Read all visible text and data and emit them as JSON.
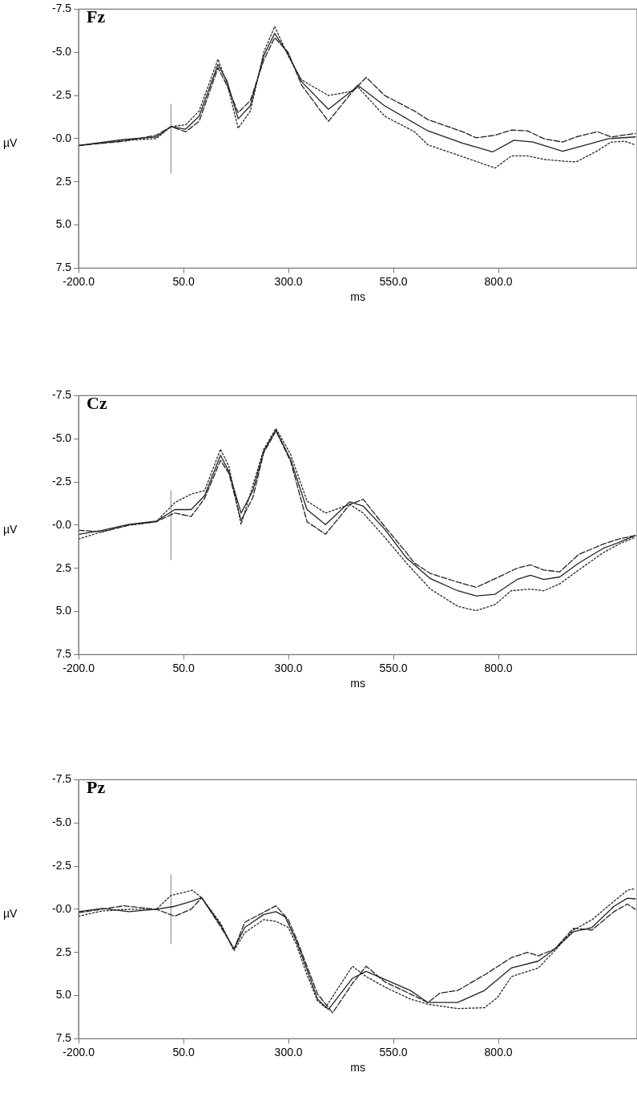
{
  "chart_data": [
    {
      "type": "line",
      "title": "Fz",
      "xlabel": "ms",
      "ylabel": "µV",
      "xlim": [
        -200,
        1130
      ],
      "ylim": [
        7.5,
        -7.5
      ],
      "marker": "none",
      "xticks": [
        {
          "value": -200,
          "label": "-200.0"
        },
        {
          "value": 50,
          "label": "50.0"
        },
        {
          "value": 300,
          "label": "300.0"
        },
        {
          "value": 550,
          "label": "550.0"
        },
        {
          "value": 800,
          "label": "800.0"
        }
      ],
      "yticks": [
        {
          "value": -7.5,
          "label": "-7.5"
        },
        {
          "value": -5,
          "label": "-5.0"
        },
        {
          "value": -2.5,
          "label": "-2.5"
        },
        {
          "value": 0,
          "label": "-0.0"
        },
        {
          "value": 2.5,
          "label": "2.5"
        },
        {
          "value": 5,
          "label": "5.0"
        },
        {
          "value": 7.5,
          "label": "7.5"
        }
      ],
      "series": [
        {
          "color": "#222222",
          "line_style": "solid",
          "x": [
            -200,
            -92,
            -15,
            20,
            55,
            87,
            132,
            154,
            180,
            209,
            241,
            267,
            299,
            331,
            395,
            453,
            465,
            529,
            632,
            715,
            786,
            837,
            882,
            953,
            1023,
            1062,
            1126
          ],
          "values": [
            0.4,
            0.05,
            -0.1,
            -0.7,
            -0.55,
            -1.3,
            -4.3,
            -3.3,
            -1.15,
            -1.9,
            -4.8,
            -6.1,
            -4.9,
            -3.3,
            -1.7,
            -2.8,
            -3.1,
            -1.9,
            -0.45,
            0.27,
            0.77,
            0.09,
            0.2,
            0.73,
            0.27,
            0,
            -0.1
          ]
        },
        {
          "color": "#222222",
          "line_style": "dashed",
          "x": [
            -200,
            -92,
            -15,
            20,
            55,
            87,
            132,
            154,
            180,
            209,
            241,
            267,
            299,
            331,
            395,
            453,
            485,
            529,
            600,
            632,
            715,
            747,
            792,
            831,
            869,
            908,
            953,
            985,
            1036,
            1068,
            1126
          ],
          "values": [
            0.4,
            0.15,
            -0.2,
            -0.7,
            -0.4,
            -1.0,
            -4.1,
            -3.05,
            -1.5,
            -2.2,
            -4.55,
            -5.85,
            -5.0,
            -3.1,
            -1.0,
            -2.75,
            -3.55,
            -2.5,
            -1.6,
            -1.1,
            -0.4,
            -0.05,
            -0.2,
            -0.5,
            -0.45,
            0,
            0.2,
            -0.1,
            -0.4,
            -0.1,
            -0.3
          ]
        },
        {
          "color": "#222222",
          "line_style": "dotted",
          "x": [
            -200,
            -92,
            -15,
            20,
            55,
            87,
            132,
            154,
            180,
            209,
            241,
            267,
            299,
            331,
            395,
            453,
            465,
            529,
            600,
            632,
            715,
            792,
            831,
            869,
            908,
            953,
            985,
            1036,
            1068,
            1100,
            1126
          ],
          "values": [
            0.4,
            0.1,
            0,
            -0.7,
            -0.8,
            -1.6,
            -4.6,
            -3.15,
            -0.6,
            -1.6,
            -5.0,
            -6.5,
            -4.8,
            -3.4,
            -2.5,
            -2.75,
            -3.0,
            -1.3,
            -0.4,
            0.36,
            1.05,
            1.7,
            1.0,
            1.0,
            1.2,
            1.3,
            1.35,
            0.7,
            0.2,
            0.15,
            0.36
          ]
        },
        {
          "color": "#999999",
          "line_style": "solid",
          "x": [
            20,
            20
          ],
          "values": [
            -2,
            2
          ]
        }
      ]
    },
    {
      "type": "line",
      "title": "Cz",
      "xlabel": "ms",
      "ylabel": "µV",
      "xlim": [
        -200,
        1130
      ],
      "ylim": [
        7.5,
        -7.5
      ],
      "marker": "none",
      "xticks": [
        {
          "value": -200,
          "label": "-200.0"
        },
        {
          "value": 50,
          "label": "50.0"
        },
        {
          "value": 300,
          "label": "300.0"
        },
        {
          "value": 550,
          "label": "550.0"
        },
        {
          "value": 800,
          "label": "800.0"
        }
      ],
      "yticks": [
        {
          "value": -7.5,
          "label": "-7.5"
        },
        {
          "value": -5,
          "label": "-5.0"
        },
        {
          "value": -2.5,
          "label": "-2.5"
        },
        {
          "value": 0,
          "label": "-0.0"
        },
        {
          "value": 2.5,
          "label": "2.5"
        },
        {
          "value": 5,
          "label": "5.0"
        },
        {
          "value": 7.5,
          "label": "7.5"
        }
      ],
      "series": [
        {
          "color": "#222222",
          "line_style": "solid",
          "x": [
            -200,
            -144,
            -80,
            -15,
            29,
            68,
            100,
            138,
            158,
            187,
            215,
            241,
            270,
            305,
            344,
            388,
            446,
            478,
            529,
            581,
            638,
            703,
            747,
            792,
            844,
            876,
            908,
            946,
            991,
            1049,
            1087,
            1126
          ],
          "values": [
            0.53,
            0.3,
            -0.05,
            -0.23,
            -0.9,
            -0.9,
            -1.7,
            -4.05,
            -3.1,
            -0.7,
            -2.0,
            -4.3,
            -5.5,
            -3.8,
            -0.9,
            -0.03,
            -1.35,
            -1.1,
            0.23,
            1.9,
            3.1,
            3.8,
            4.1,
            4.0,
            3.15,
            2.9,
            3.15,
            3.0,
            2.2,
            1.35,
            1.0,
            0.6
          ]
        },
        {
          "color": "#222222",
          "line_style": "dashed",
          "x": [
            -200,
            -144,
            -80,
            -15,
            29,
            68,
            100,
            138,
            158,
            187,
            215,
            241,
            270,
            305,
            344,
            388,
            446,
            478,
            529,
            581,
            600,
            638,
            703,
            747,
            792,
            844,
            876,
            908,
            946,
            991,
            1049,
            1087,
            1126
          ],
          "values": [
            0.3,
            0.38,
            0,
            -0.2,
            -0.7,
            -0.5,
            -1.55,
            -3.75,
            -3.0,
            -0.27,
            -1.6,
            -4.2,
            -5.45,
            -3.7,
            -0.2,
            0.53,
            -1.2,
            -1.5,
            0.08,
            1.6,
            2.2,
            2.8,
            3.3,
            3.6,
            3.1,
            2.5,
            2.3,
            2.6,
            2.7,
            1.7,
            1.1,
            0.8,
            0.6
          ]
        },
        {
          "color": "#222222",
          "line_style": "dotted",
          "x": [
            -200,
            -144,
            -80,
            -15,
            29,
            68,
            100,
            138,
            158,
            187,
            215,
            241,
            270,
            305,
            344,
            388,
            446,
            478,
            529,
            581,
            638,
            703,
            747,
            792,
            830,
            876,
            908,
            946,
            991,
            1049,
            1087,
            1126
          ],
          "values": [
            0.8,
            0.38,
            0,
            -0.2,
            -1.3,
            -1.8,
            -2.0,
            -4.4,
            -3.4,
            -0.05,
            -2.3,
            -4.4,
            -5.6,
            -4.1,
            -1.4,
            -0.7,
            -1.2,
            -0.7,
            0.7,
            2.2,
            3.7,
            4.7,
            4.95,
            4.6,
            3.8,
            3.7,
            3.8,
            3.4,
            2.6,
            1.6,
            1.1,
            0.7
          ]
        },
        {
          "color": "#999999",
          "line_style": "solid",
          "x": [
            20,
            20
          ],
          "values": [
            -2,
            2
          ]
        }
      ]
    },
    {
      "type": "line",
      "title": "Pz",
      "xlabel": "ms",
      "ylabel": "µV",
      "xlim": [
        -200,
        1130
      ],
      "ylim": [
        7.5,
        -7.5
      ],
      "marker": "none",
      "xticks": [
        {
          "value": -200,
          "label": "-200.0"
        },
        {
          "value": 50,
          "label": "50.0"
        },
        {
          "value": 300,
          "label": "300.0"
        },
        {
          "value": 550,
          "label": "550.0"
        },
        {
          "value": 800,
          "label": "800.0"
        }
      ],
      "yticks": [
        {
          "value": -7.5,
          "label": "-7.5"
        },
        {
          "value": -5,
          "label": "-5.0"
        },
        {
          "value": -2.5,
          "label": "-2.5"
        },
        {
          "value": 0,
          "label": "-0.0"
        },
        {
          "value": 2.5,
          "label": "2.5"
        },
        {
          "value": 5,
          "label": "5.0"
        },
        {
          "value": 7.5,
          "label": "7.5"
        }
      ],
      "series": [
        {
          "color": "#222222",
          "line_style": "solid",
          "x": [
            -200,
            -144,
            -80,
            -15,
            29,
            68,
            93,
            138,
            170,
            196,
            241,
            270,
            292,
            318,
            344,
            369,
            395,
            452,
            485,
            590,
            632,
            703,
            767,
            831,
            895,
            934,
            979,
            1023,
            1075,
            1107,
            1126
          ],
          "values": [
            0.14,
            -0.05,
            0.14,
            0,
            -0.17,
            -0.45,
            -0.67,
            0.9,
            2.3,
            1.05,
            0.3,
            0.14,
            0.44,
            1.8,
            3.5,
            5.2,
            5.8,
            4.0,
            3.6,
            4.7,
            5.4,
            5.4,
            4.7,
            3.4,
            3.0,
            2.3,
            1.3,
            1.05,
            -0.17,
            -0.64,
            -0.6
          ]
        },
        {
          "color": "#222222",
          "line_style": "dashed",
          "x": [
            -200,
            -92,
            -15,
            29,
            68,
            93,
            138,
            170,
            196,
            270,
            299,
            318,
            344,
            369,
            405,
            452,
            485,
            529,
            581,
            632,
            661,
            703,
            767,
            831,
            869,
            895,
            934,
            979,
            1023,
            1075,
            1107,
            1126
          ],
          "values": [
            0.2,
            -0.2,
            0,
            0.4,
            0,
            -0.67,
            1.0,
            2.3,
            0.75,
            -0.2,
            0.6,
            1.65,
            3.3,
            4.9,
            6.0,
            4.3,
            3.3,
            4.2,
            4.8,
            5.4,
            4.85,
            4.7,
            3.8,
            2.8,
            2.5,
            2.7,
            2.3,
            1.1,
            1.2,
            0.14,
            -0.3,
            0
          ]
        },
        {
          "color": "#222222",
          "line_style": "dotted",
          "x": [
            -200,
            -144,
            -80,
            -15,
            20,
            71,
            93,
            138,
            170,
            196,
            241,
            270,
            299,
            318,
            344,
            369,
            388,
            452,
            485,
            529,
            590,
            632,
            703,
            767,
            798,
            831,
            869,
            895,
            934,
            979,
            1023,
            1075,
            1107,
            1126
          ],
          "values": [
            0.4,
            0.1,
            0,
            0,
            -0.8,
            -1.1,
            -0.67,
            0.8,
            2.4,
            1.35,
            0.6,
            0.7,
            1.05,
            2.0,
            3.8,
            5.3,
            5.7,
            3.3,
            3.9,
            4.5,
            5.2,
            5.5,
            5.75,
            5.7,
            5.1,
            3.9,
            3.6,
            3.4,
            2.4,
            1.2,
            0.6,
            -0.46,
            -1.1,
            -1.2
          ]
        },
        {
          "color": "#999999",
          "line_style": "solid",
          "x": [
            20,
            20
          ],
          "values": [
            -2,
            2
          ]
        }
      ]
    }
  ]
}
